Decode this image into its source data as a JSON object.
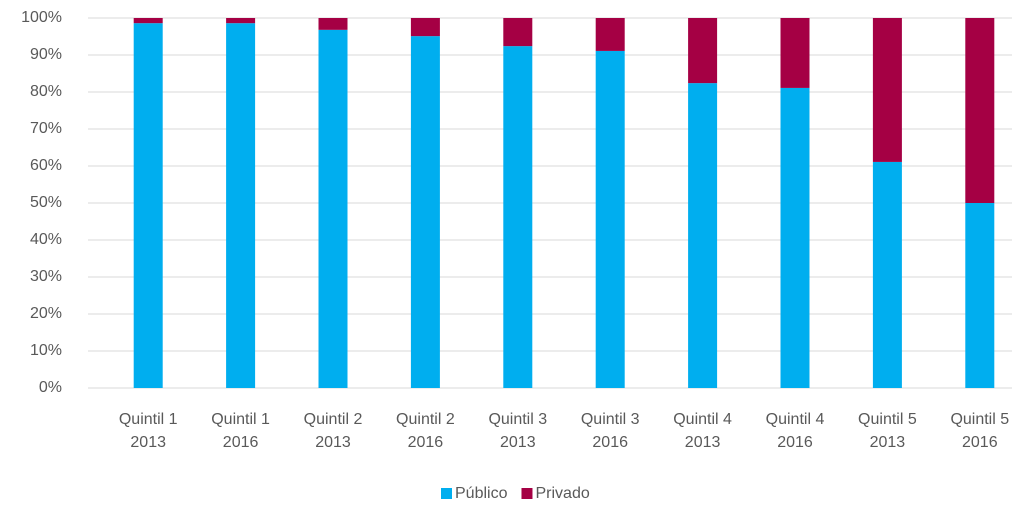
{
  "chart_data": {
    "type": "stacked_bar",
    "categories": [
      [
        "Quintil 1",
        "2013"
      ],
      [
        "Quintil 1",
        "2016"
      ],
      [
        "Quintil 2",
        "2013"
      ],
      [
        "Quintil 2",
        "2016"
      ],
      [
        "Quintil 3",
        "2013"
      ],
      [
        "Quintil 3",
        "2016"
      ],
      [
        "Quintil 4",
        "2013"
      ],
      [
        "Quintil 4",
        "2016"
      ],
      [
        "Quintil 5",
        "2013"
      ],
      [
        "Quintil 5",
        "2016"
      ]
    ],
    "series": [
      {
        "name": "Público",
        "color": "#00aeef",
        "values": [
          98.6,
          98.6,
          96.8,
          95.1,
          92.4,
          91.1,
          82.4,
          81.1,
          61.1,
          50
        ]
      },
      {
        "name": "Privado",
        "color": "#a50044",
        "values": [
          1.4,
          1.4,
          3.2,
          4.9,
          7.6,
          8.9,
          17.6,
          18.9,
          38.9,
          50
        ]
      }
    ],
    "ylim": [
      0,
      100
    ],
    "yticks": [
      {
        "value": 0,
        "label": "0%"
      },
      {
        "value": 10,
        "label": "10%"
      },
      {
        "value": 20,
        "label": "20%"
      },
      {
        "value": 30,
        "label": "30%"
      },
      {
        "value": 40,
        "label": "40%"
      },
      {
        "value": 50,
        "label": "50%"
      },
      {
        "value": 60,
        "label": "60%"
      },
      {
        "value": 70,
        "label": "70%"
      },
      {
        "value": 80,
        "label": "80%"
      },
      {
        "value": 90,
        "label": "90%"
      },
      {
        "value": 100,
        "label": "100%"
      }
    ],
    "grid": true,
    "legend": "bottom"
  }
}
